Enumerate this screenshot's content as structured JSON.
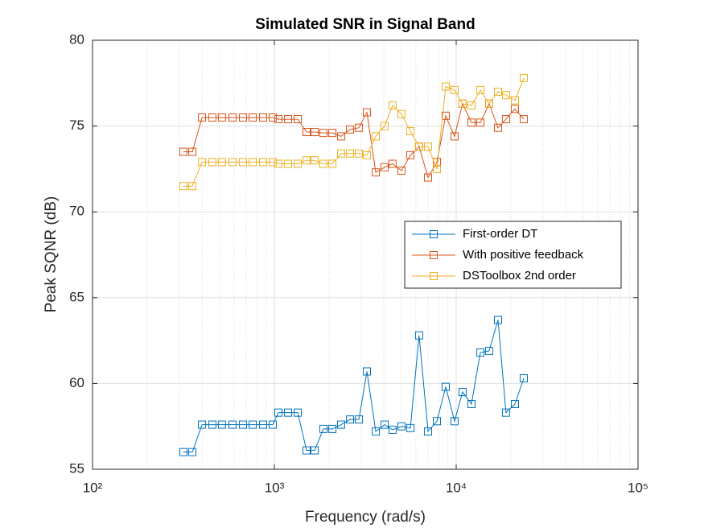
{
  "chart_data": {
    "type": "line",
    "title": "Simulated SNR in Signal Band",
    "x_label": "Frequency (rad/s)",
    "y_label": "Peak SQNR (dB)",
    "x_scale": "log",
    "xlim": [
      100,
      100000
    ],
    "xticks": [
      {
        "value": 100,
        "label": "10²"
      },
      {
        "value": 1000,
        "label": "10³"
      },
      {
        "value": 10000,
        "label": "10⁴"
      },
      {
        "value": 100000,
        "label": "10⁵"
      }
    ],
    "ylim": [
      55,
      80
    ],
    "yticks": [
      55,
      60,
      65,
      70,
      75,
      80
    ],
    "grid": true,
    "minor_grid": true,
    "legend_position": "east",
    "marker": "square",
    "x": [
      316,
      354,
      400,
      456,
      515,
      589,
      672,
      760,
      867,
      980,
      1052,
      1189,
      1344,
      1503,
      1665,
      1862,
      2084,
      2328,
      2606,
      2917,
      3228,
      3612,
      4037,
      4467,
      5000,
      5598,
      6252,
      7000,
      7834,
      8757,
      9795,
      10840,
      12130,
      13580,
      15170,
      16980,
      18790,
      21040,
      23530
    ],
    "series": [
      {
        "name": "First-order DT",
        "color": "#0072BD",
        "values": [
          56.0,
          56.0,
          57.6,
          57.6,
          57.6,
          57.6,
          57.6,
          57.6,
          57.6,
          57.6,
          58.3,
          58.3,
          58.3,
          56.1,
          56.1,
          57.35,
          57.35,
          57.6,
          57.9,
          57.9,
          60.7,
          57.2,
          57.6,
          57.3,
          57.5,
          57.4,
          62.8,
          57.2,
          57.8,
          59.8,
          57.8,
          59.5,
          58.8,
          61.8,
          61.9,
          63.7,
          58.3,
          58.8,
          60.3
        ]
      },
      {
        "name": "With positive feedback",
        "color": "#D95319",
        "values": [
          73.5,
          73.5,
          75.5,
          75.5,
          75.5,
          75.5,
          75.5,
          75.5,
          75.5,
          75.5,
          75.4,
          75.4,
          75.4,
          74.65,
          74.65,
          74.6,
          74.6,
          74.4,
          74.8,
          74.9,
          75.8,
          72.3,
          72.6,
          72.8,
          72.4,
          73.3,
          73.8,
          72.0,
          72.9,
          75.6,
          74.4,
          76.3,
          75.2,
          75.2,
          76.3,
          74.9,
          75.4,
          76.0,
          75.4
        ]
      },
      {
        "name": "DSToolbox 2nd order",
        "color": "#EDB120",
        "values": [
          71.5,
          71.5,
          72.9,
          72.9,
          72.9,
          72.9,
          72.9,
          72.9,
          72.9,
          72.9,
          72.8,
          72.8,
          72.8,
          73.0,
          73.0,
          72.8,
          72.8,
          73.4,
          73.4,
          73.4,
          73.3,
          74.4,
          75.0,
          76.2,
          75.7,
          74.7,
          73.8,
          73.8,
          72.5,
          77.3,
          77.1,
          76.3,
          76.2,
          77.1,
          76.3,
          77.0,
          76.8,
          76.5,
          77.8
        ]
      }
    ]
  }
}
